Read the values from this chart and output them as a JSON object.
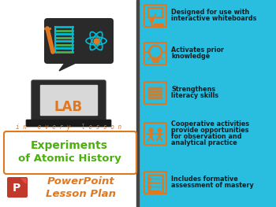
{
  "bg_left": "#ffffff",
  "bg_right": "#29bde0",
  "divider_color": "#444444",
  "title_text1": "Experiments",
  "title_text2": "of Atomic History",
  "title_color": "#4caf10",
  "subtitle_text1": "PowerPoint",
  "subtitle_text2": "Lesson Plan",
  "subtitle_color": "#e07820",
  "tagline": "in every lesson",
  "tagline_color": "#e07820",
  "lab_color": "#e07820",
  "right_features": [
    "Designed for use with\ninteractive whiteboards",
    "Activates prior\nknowledge",
    "Strengthens\nliteracy skills",
    "Cooperative activities\nprovide opportunities\nfor observation and\nanalytical practice",
    "Includes formative\nassessment of mastery"
  ],
  "feature_color": "#1a1a1a",
  "icon_color": "#e07820"
}
